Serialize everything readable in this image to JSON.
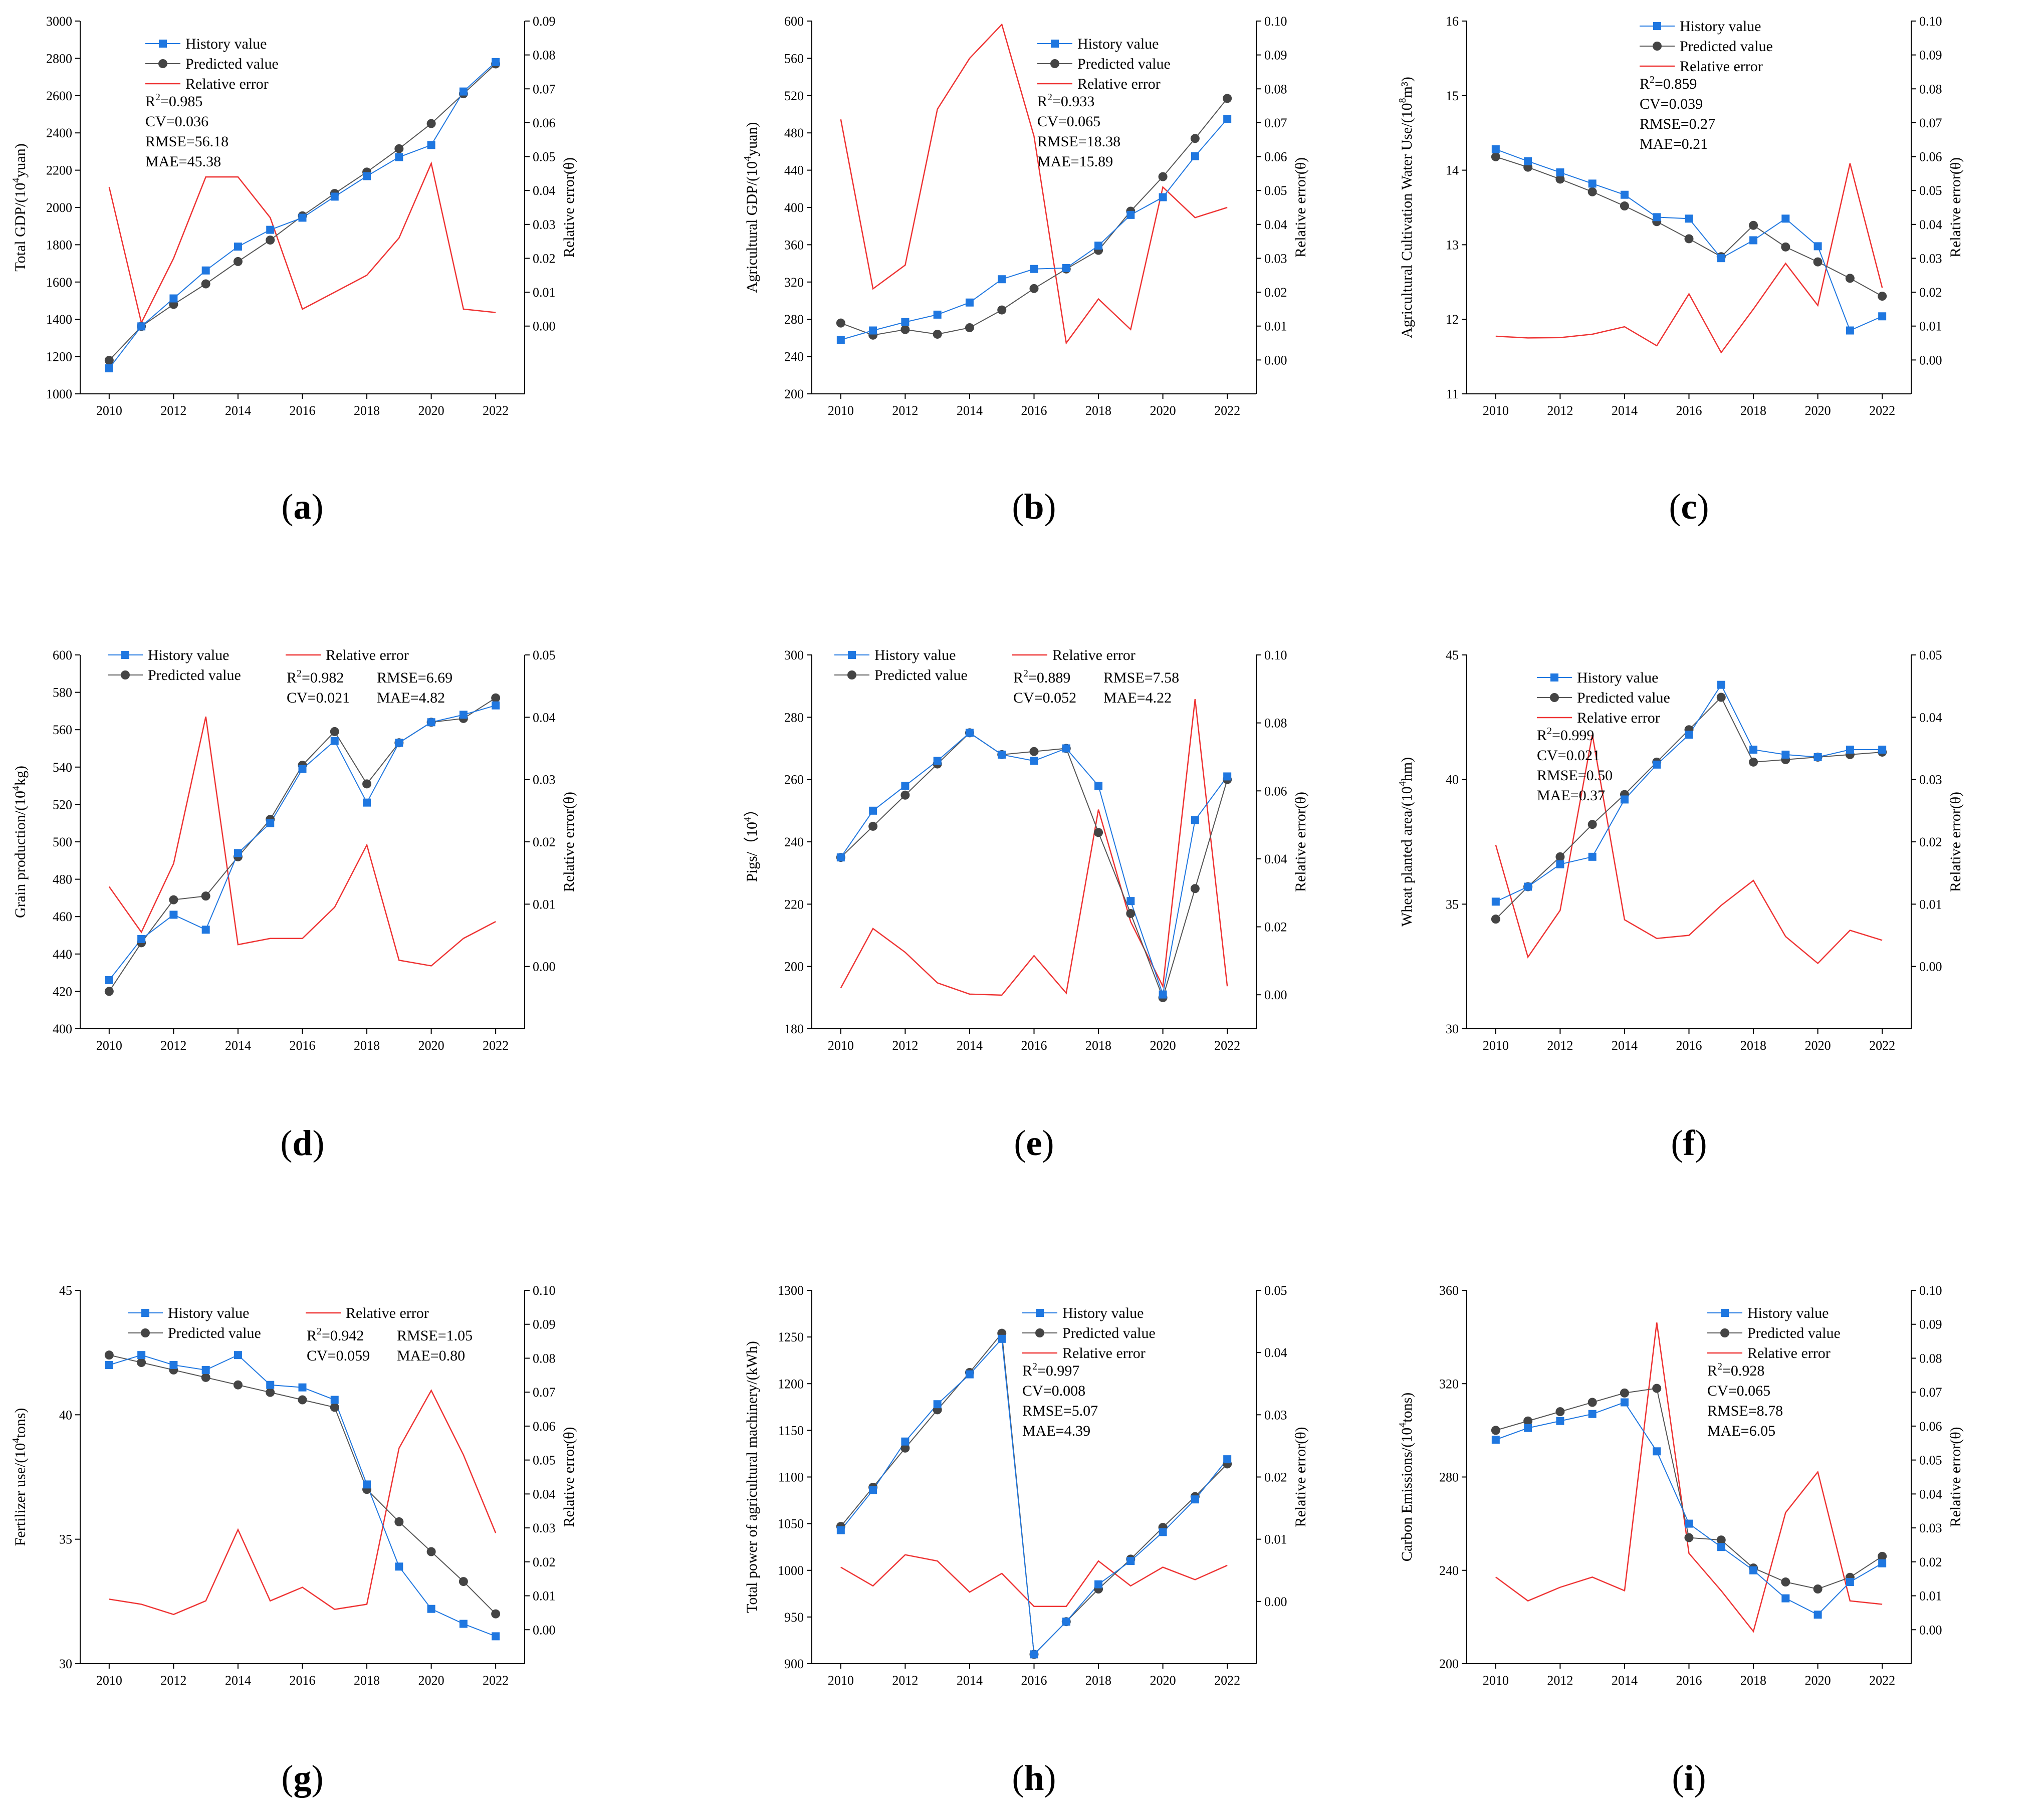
{
  "chart_data": [
    {
      "id": "a",
      "type": "line",
      "caption": "a",
      "ylabel_main": "Total GDP/(10",
      "ylabel_sup": "4",
      "ylabel_rest": "yuan)",
      "ylabel_right": "Relative error(θ)",
      "x": [
        2010,
        2011,
        2012,
        2013,
        2014,
        2015,
        2016,
        2017,
        2018,
        2019,
        2020,
        2021,
        2022
      ],
      "xticks": [
        2010,
        2012,
        2014,
        2016,
        2018,
        2020,
        2022
      ],
      "ylim": [
        1000,
        3000
      ],
      "yticks": [
        1000,
        1200,
        1400,
        1600,
        1800,
        2000,
        2200,
        2400,
        2600,
        2800,
        3000
      ],
      "ylim_right": [
        -0.02,
        0.09
      ],
      "yticks_right": [
        0,
        0.01,
        0.02,
        0.03,
        0.04,
        0.05,
        0.06,
        0.07,
        0.08,
        0.09
      ],
      "series": [
        {
          "name": "History value",
          "values": [
            1137,
            1362,
            1512,
            1662,
            1790,
            1880,
            1945,
            2058,
            2168,
            2270,
            2335,
            2622,
            2780
          ]
        },
        {
          "name": "Predicted value",
          "values": [
            1180,
            1362,
            1480,
            1590,
            1710,
            1825,
            1955,
            2075,
            2190,
            2315,
            2450,
            2610,
            2770
          ]
        },
        {
          "name": "Relative error",
          "values": [
            0.041,
            0.001,
            0.02,
            0.044,
            0.044,
            0.032,
            0.005,
            0.01,
            0.015,
            0.026,
            0.048,
            0.005,
            0.004
          ]
        }
      ],
      "legend": [
        "History value",
        "Predicted value",
        "Relative error"
      ],
      "stats": {
        "r2": "=0.985",
        "cv": "CV=0.036",
        "rmse": "RMSE=56.18",
        "mae": "MAE=45.38"
      }
    },
    {
      "id": "b",
      "type": "line",
      "caption": "b",
      "ylabel_main": "Agricultural GDP/(10",
      "ylabel_sup": "4",
      "ylabel_rest": "yuan)",
      "ylabel_right": "Relative error(θ)",
      "x": [
        2010,
        2011,
        2012,
        2013,
        2014,
        2015,
        2016,
        2017,
        2018,
        2019,
        2020,
        2021,
        2022
      ],
      "xticks": [
        2010,
        2012,
        2014,
        2016,
        2018,
        2020,
        2022
      ],
      "ylim": [
        200,
        600
      ],
      "yticks": [
        200,
        240,
        280,
        320,
        360,
        400,
        440,
        480,
        520,
        560,
        600
      ],
      "ylim_right": [
        -0.01,
        0.1
      ],
      "yticks_right": [
        0,
        0.01,
        0.02,
        0.03,
        0.04,
        0.05,
        0.06,
        0.07,
        0.08,
        0.09,
        0.1
      ],
      "series": [
        {
          "name": "History value",
          "values": [
            258,
            268,
            277,
            285,
            298,
            323,
            334,
            335,
            359,
            392,
            411,
            455,
            495
          ]
        },
        {
          "name": "Predicted value",
          "values": [
            276,
            263,
            269,
            264,
            271,
            290,
            313,
            334,
            354,
            396,
            433,
            474,
            517
          ]
        },
        {
          "name": "Relative error",
          "values": [
            0.071,
            0.021,
            0.028,
            0.074,
            0.089,
            0.099,
            0.066,
            0.005,
            0.018,
            0.009,
            0.051,
            0.042,
            0.045
          ]
        }
      ],
      "legend": [
        "History value",
        "Predicted value",
        "Relative error"
      ],
      "stats": {
        "r2": "=0.933",
        "cv": "CV=0.065",
        "rmse": "RMSE=18.38",
        "mae": "MAE=15.89"
      }
    },
    {
      "id": "c",
      "type": "line",
      "caption": "c",
      "ylabel_main": "Agricultural Cultivation Water Use/(10",
      "ylabel_sup": "8",
      "ylabel_rest": "m³)",
      "ylabel_right": "Relative error(θ)",
      "x": [
        2010,
        2011,
        2012,
        2013,
        2014,
        2015,
        2016,
        2017,
        2018,
        2019,
        2020,
        2021,
        2022
      ],
      "xticks": [
        2010,
        2012,
        2014,
        2016,
        2018,
        2020,
        2022
      ],
      "ylim": [
        11,
        16
      ],
      "yticks": [
        11,
        12,
        13,
        14,
        15,
        16
      ],
      "ylim_right": [
        -0.01,
        0.1
      ],
      "yticks_right": [
        0,
        0.01,
        0.02,
        0.03,
        0.04,
        0.05,
        0.06,
        0.07,
        0.08,
        0.09,
        0.1
      ],
      "series": [
        {
          "name": "History value",
          "values": [
            14.28,
            14.12,
            13.97,
            13.82,
            13.67,
            13.37,
            13.35,
            12.82,
            13.06,
            13.35,
            12.98,
            11.85,
            12.04
          ]
        },
        {
          "name": "Predicted value",
          "values": [
            14.18,
            14.04,
            13.88,
            13.71,
            13.52,
            13.31,
            13.08,
            12.84,
            13.26,
            12.97,
            12.77,
            12.55,
            12.31
          ]
        },
        {
          "name": "Relative error",
          "values": [
            0.007,
            0.0065,
            0.0066,
            0.0076,
            0.0098,
            0.0042,
            0.0195,
            0.0022,
            0.015,
            0.0285,
            0.0161,
            0.058,
            0.0213
          ]
        }
      ],
      "legend": [
        "History value",
        "Predicted value",
        "Relative error"
      ],
      "stats": {
        "r2": "=0.859",
        "cv": "CV=0.039",
        "rmse": "RMSE=0.27",
        "mae": "MAE=0.21"
      }
    },
    {
      "id": "d",
      "type": "line",
      "caption": "d",
      "ylabel_main": "Grain production/(10",
      "ylabel_sup": "4",
      "ylabel_rest": "kg)",
      "ylabel_right": "Relative error(θ)",
      "x": [
        2010,
        2011,
        2012,
        2013,
        2014,
        2015,
        2016,
        2017,
        2018,
        2019,
        2020,
        2021,
        2022
      ],
      "xticks": [
        2010,
        2012,
        2014,
        2016,
        2018,
        2020,
        2022
      ],
      "ylim": [
        400,
        600
      ],
      "yticks": [
        400,
        420,
        440,
        460,
        480,
        500,
        520,
        540,
        560,
        580,
        600
      ],
      "ylim_right": [
        -0.01,
        0.05
      ],
      "yticks_right": [
        0,
        0.01,
        0.02,
        0.03,
        0.04,
        0.05
      ],
      "series": [
        {
          "name": "History value",
          "values": [
            426,
            448,
            461,
            453,
            494,
            510,
            539,
            554,
            521,
            553,
            564,
            568,
            573
          ]
        },
        {
          "name": "Predicted value",
          "values": [
            420,
            446,
            469,
            471,
            492,
            512,
            541,
            559,
            531,
            553,
            564,
            566,
            577
          ]
        },
        {
          "name": "Relative error",
          "values": [
            0.0128,
            0.0055,
            0.0165,
            0.0401,
            0.0035,
            0.0045,
            0.0045,
            0.0095,
            0.0195,
            0.001,
            0.0001,
            0.0045,
            0.0072
          ]
        }
      ],
      "legend": [
        "History value",
        "Predicted value",
        "Relative error"
      ],
      "stats": {
        "r2": "=0.982",
        "cv": "CV=0.021",
        "rmse": "RMSE=6.69",
        "mae": "MAE=4.82"
      }
    },
    {
      "id": "e",
      "type": "line",
      "caption": "e",
      "ylabel_main": "Pigs/（10",
      "ylabel_sup": "4",
      "ylabel_rest": "）",
      "ylabel_right": "Relative error(θ)",
      "x": [
        2010,
        2011,
        2012,
        2013,
        2014,
        2015,
        2016,
        2017,
        2018,
        2019,
        2020,
        2021,
        2022
      ],
      "xticks": [
        2010,
        2012,
        2014,
        2016,
        2018,
        2020,
        2022
      ],
      "ylim": [
        180,
        300
      ],
      "yticks": [
        180,
        200,
        220,
        240,
        260,
        280,
        300
      ],
      "ylim_right": [
        -0.01,
        0.1
      ],
      "yticks_right": [
        0,
        0.02,
        0.04,
        0.06,
        0.08,
        0.1
      ],
      "series": [
        {
          "name": "History value",
          "values": [
            235,
            250,
            258,
            266,
            275,
            268,
            266,
            270,
            258,
            221,
            191,
            247,
            261
          ]
        },
        {
          "name": "Predicted value",
          "values": [
            235,
            245,
            255,
            265,
            275,
            268,
            269,
            270,
            243,
            217,
            190,
            225,
            260
          ]
        },
        {
          "name": "Relative error",
          "values": [
            0.002,
            0.0195,
            0.0125,
            0.0035,
            0.0002,
            -0.0001,
            0.0115,
            0.0005,
            0.0545,
            0.0215,
            0.0025,
            0.087,
            0.0025
          ]
        }
      ],
      "legend": [
        "History value",
        "Predicted value",
        "Relative error"
      ],
      "stats": {
        "r2": "=0.889",
        "cv": "CV=0.052",
        "rmse": "RMSE=7.58",
        "mae": "MAE=4.22"
      }
    },
    {
      "id": "f",
      "type": "line",
      "caption": "f",
      "ylabel_main": "Wheat planted area/(10",
      "ylabel_sup": "4",
      "ylabel_rest": "hm)",
      "ylabel_right": "Relative error(θ)",
      "x": [
        2010,
        2011,
        2012,
        2013,
        2014,
        2015,
        2016,
        2017,
        2018,
        2019,
        2020,
        2021,
        2022
      ],
      "xticks": [
        2010,
        2012,
        2014,
        2016,
        2018,
        2020,
        2022
      ],
      "ylim": [
        30,
        45
      ],
      "yticks": [
        30,
        35,
        40,
        45
      ],
      "ylim_right": [
        -0.01,
        0.05
      ],
      "yticks_right": [
        0,
        0.01,
        0.02,
        0.03,
        0.04,
        0.05
      ],
      "series": [
        {
          "name": "History value",
          "values": [
            35.1,
            35.7,
            36.6,
            36.9,
            39.2,
            40.6,
            41.8,
            43.8,
            41.2,
            41.0,
            40.9,
            41.2,
            41.2
          ]
        },
        {
          "name": "Predicted value",
          "values": [
            34.4,
            35.7,
            36.9,
            38.2,
            39.4,
            40.7,
            42.0,
            43.3,
            40.7,
            40.8,
            40.9,
            41.0,
            41.1
          ]
        },
        {
          "name": "Relative error",
          "values": [
            0.0195,
            0.0015,
            0.009,
            0.0372,
            0.0075,
            0.0045,
            0.005,
            0.0098,
            0.0138,
            0.0048,
            0.0005,
            0.0058,
            0.0042
          ]
        }
      ],
      "legend": [
        "History value",
        "Predicted value",
        "Relative error"
      ],
      "stats": {
        "r2": "=0.999",
        "cv": "CV=0.021",
        "rmse": "RMSE=0.50",
        "mae": "MAE=0.37"
      }
    },
    {
      "id": "g",
      "type": "line",
      "caption": "g",
      "ylabel_main": "Fertilizer use/(10",
      "ylabel_sup": "4",
      "ylabel_rest": "tons)",
      "ylabel_right": "Relative error(θ)",
      "x": [
        2010,
        2011,
        2012,
        2013,
        2014,
        2015,
        2016,
        2017,
        2018,
        2019,
        2020,
        2021,
        2022
      ],
      "xticks": [
        2010,
        2012,
        2014,
        2016,
        2018,
        2020,
        2022
      ],
      "ylim": [
        30,
        45
      ],
      "yticks": [
        30,
        35,
        40,
        45
      ],
      "ylim_right": [
        -0.01,
        0.1
      ],
      "yticks_right": [
        0,
        0.01,
        0.02,
        0.03,
        0.04,
        0.05,
        0.06,
        0.07,
        0.08,
        0.09,
        0.1
      ],
      "series": [
        {
          "name": "History value",
          "values": [
            42.0,
            42.4,
            42.0,
            41.8,
            42.4,
            41.2,
            41.1,
            40.6,
            37.2,
            33.9,
            32.2,
            31.6,
            31.1
          ]
        },
        {
          "name": "Predicted value",
          "values": [
            42.4,
            42.1,
            41.8,
            41.5,
            41.2,
            40.9,
            40.6,
            40.3,
            37.0,
            35.7,
            34.5,
            33.3,
            32.0
          ]
        },
        {
          "name": "Relative error",
          "values": [
            0.009,
            0.0075,
            0.0045,
            0.0085,
            0.0295,
            0.0085,
            0.0125,
            0.006,
            0.0075,
            0.0535,
            0.0705,
            0.0515,
            0.0285
          ]
        }
      ],
      "legend": [
        "History value",
        "Predicted value",
        "Relative error"
      ],
      "stats": {
        "r2": "=0.942",
        "cv": "CV=0.059",
        "rmse": "RMSE=1.05",
        "mae": "MAE=0.80"
      }
    },
    {
      "id": "h",
      "type": "line",
      "caption": "h",
      "ylabel_main": "Total power of agricultural machinery/(kWh)",
      "ylabel_sup": "",
      "ylabel_rest": "",
      "ylabel_right": "Relative error(θ)",
      "x": [
        2010,
        2011,
        2012,
        2013,
        2014,
        2015,
        2016,
        2017,
        2018,
        2019,
        2020,
        2021,
        2022
      ],
      "xticks": [
        2010,
        2012,
        2014,
        2016,
        2018,
        2020,
        2022
      ],
      "ylim": [
        900,
        1300
      ],
      "yticks": [
        900,
        950,
        1000,
        1050,
        1100,
        1150,
        1200,
        1250,
        1300
      ],
      "ylim_right": [
        -0.01,
        0.05
      ],
      "yticks_right": [
        0,
        0.01,
        0.02,
        0.03,
        0.04,
        0.05
      ],
      "series": [
        {
          "name": "History value",
          "values": [
            1043,
            1086,
            1138,
            1178,
            1210,
            1248,
            910,
            945,
            985,
            1010,
            1041,
            1076,
            1119
          ]
        },
        {
          "name": "Predicted value",
          "values": [
            1047,
            1089,
            1131,
            1172,
            1212,
            1254,
            910,
            945,
            980,
            1012,
            1046,
            1079,
            1114
          ]
        },
        {
          "name": "Relative error",
          "values": [
            0.0055,
            0.0025,
            0.0075,
            0.0065,
            0.0015,
            0.0045,
            -0.0008,
            -0.0008,
            0.0065,
            0.0025,
            0.0055,
            0.0035,
            0.0058
          ]
        }
      ],
      "legend": [
        "History value",
        "Predicted value",
        "Relative error"
      ],
      "stats": {
        "r2": "=0.997",
        "cv": "CV=0.008",
        "rmse": "RMSE=5.07",
        "mae": "MAE=4.39"
      }
    },
    {
      "id": "i",
      "type": "line",
      "caption": "i",
      "ylabel_main": "Carbon Emissions/(10",
      "ylabel_sup": "4",
      "ylabel_rest": "tons)",
      "ylabel_right": "Relative error(θ)",
      "x": [
        2010,
        2011,
        2012,
        2013,
        2014,
        2015,
        2016,
        2017,
        2018,
        2019,
        2020,
        2021,
        2022
      ],
      "xticks": [
        2010,
        2012,
        2014,
        2016,
        2018,
        2020,
        2022
      ],
      "ylim": [
        200,
        360
      ],
      "yticks": [
        200,
        240,
        280,
        320,
        360
      ],
      "ylim_right": [
        -0.01,
        0.1
      ],
      "yticks_right": [
        0,
        0.01,
        0.02,
        0.03,
        0.04,
        0.05,
        0.06,
        0.07,
        0.08,
        0.09,
        0.1
      ],
      "series": [
        {
          "name": "History value",
          "values": [
            296,
            301,
            304,
            307,
            312,
            291,
            260,
            250,
            240,
            228,
            221,
            235,
            243
          ]
        },
        {
          "name": "Predicted value",
          "values": [
            300,
            304,
            308,
            312,
            316,
            318,
            254,
            253,
            241,
            235,
            232,
            237,
            246
          ]
        },
        {
          "name": "Relative error",
          "values": [
            0.0155,
            0.0085,
            0.0125,
            0.0155,
            0.0115,
            0.0905,
            0.0225,
            0.0115,
            -0.0005,
            0.0345,
            0.0465,
            0.0085,
            0.0075
          ]
        }
      ],
      "legend": [
        "History value",
        "Predicted value",
        "Relative error"
      ],
      "stats": {
        "r2": "=0.928",
        "cv": "CV=0.065",
        "rmse": "RMSE=8.78",
        "mae": "MAE=6.05"
      }
    }
  ]
}
